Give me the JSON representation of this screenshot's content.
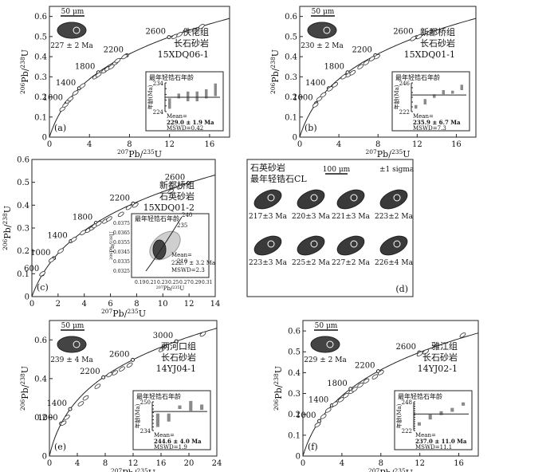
{
  "chart_data": [
    {
      "type": "scatter",
      "panel_label": "(a)",
      "xlabel": "207Pb/235U",
      "ylabel": "206Pb/238U",
      "xlim": [
        0,
        18
      ],
      "ylim": [
        0,
        0.65
      ],
      "xticks": [
        0,
        4,
        8,
        12,
        16
      ],
      "yticks": [
        0,
        0.1,
        0.2,
        0.3,
        0.4,
        0.5,
        0.6
      ],
      "sample_text": [
        "佚佬组",
        "长石砂岩",
        "15XDQ06-1"
      ],
      "concordia_ages": [
        "1000",
        "1400",
        "1800",
        "2200",
        "2600"
      ],
      "zircon_age": "227 ± 2 Ma",
      "scale_bar": "50 μm",
      "points": [
        [
          1.3,
          0.14
        ],
        [
          1.6,
          0.16
        ],
        [
          1.9,
          0.18
        ],
        [
          2.1,
          0.19
        ],
        [
          2.6,
          0.22
        ],
        [
          3.3,
          0.255
        ],
        [
          4.6,
          0.3
        ],
        [
          4.9,
          0.31
        ],
        [
          5.5,
          0.33
        ],
        [
          5.8,
          0.34
        ],
        [
          6.2,
          0.35
        ],
        [
          6.6,
          0.37
        ],
        [
          6.8,
          0.38
        ],
        [
          7.5,
          0.4
        ],
        [
          12.5,
          0.5
        ],
        [
          13.0,
          0.51
        ],
        [
          15.2,
          0.55
        ]
      ],
      "inset": {
        "title": "最年轻锆石年龄",
        "ylabel": "年龄(Ma)",
        "ylim": [
          224,
          234
        ],
        "yticks": [
          224,
          226,
          228,
          230,
          232,
          234
        ],
        "mean_line": 229.0,
        "bars": [
          [
            225.0,
            228.6
          ],
          [
            228.6,
            230.3
          ],
          [
            227.6,
            231.0
          ],
          [
            227.6,
            231.0
          ],
          [
            228.6,
            231.8
          ],
          [
            229.4,
            233.8
          ]
        ],
        "mean_text": "Mean=",
        "mean_value": "229.0 ± 1.9 Ma",
        "mswd": "MSWD=0.42"
      }
    },
    {
      "type": "scatter",
      "panel_label": "(b)",
      "xlabel": "207Pb/235U",
      "ylabel": "206Pb/238U",
      "xlim": [
        0,
        18
      ],
      "ylim": [
        0,
        0.65
      ],
      "xticks": [
        0,
        4,
        8,
        12,
        16
      ],
      "yticks": [
        0,
        0.1,
        0.2,
        0.3,
        0.4,
        0.5,
        0.6
      ],
      "sample_text": [
        "新都桥组",
        "长石砂岩",
        "15XDQ01-1"
      ],
      "concordia_ages": [
        "1000",
        "1400",
        "1800",
        "2200",
        "2600"
      ],
      "zircon_age": "230 ± 2 Ma",
      "scale_bar": "50 μm",
      "points": [
        [
          1.6,
          0.16
        ],
        [
          2.0,
          0.19
        ],
        [
          2.4,
          0.21
        ],
        [
          3.1,
          0.24
        ],
        [
          3.6,
          0.26
        ],
        [
          4.5,
          0.3
        ],
        [
          5.0,
          0.31
        ],
        [
          5.4,
          0.32
        ],
        [
          6.2,
          0.35
        ],
        [
          6.8,
          0.37
        ],
        [
          7.4,
          0.39
        ],
        [
          7.9,
          0.4
        ],
        [
          11.6,
          0.49
        ],
        [
          12.2,
          0.5
        ],
        [
          13.3,
          0.52
        ]
      ],
      "inset": {
        "title": "最年轻锆石年龄",
        "ylabel": "年龄(Ma)",
        "ylim": [
          222,
          246
        ],
        "yticks": [
          222,
          226,
          230,
          234,
          238,
          242,
          246
        ],
        "mean_line": 235.9,
        "bars": [
          [
            224.5,
            227.5
          ],
          [
            228.0,
            232.5
          ],
          [
            233.5,
            236.5
          ],
          [
            236.5,
            240.0
          ],
          [
            237.0,
            239.5
          ],
          [
            240.0,
            244.5
          ]
        ],
        "mean_text": "Mean=",
        "mean_value": "235.9 ± 6.7 Ma",
        "mswd": "MSWD=7.3"
      }
    },
    {
      "type": "scatter",
      "panel_label": "(c)",
      "xlabel": "207Pb/235U",
      "ylabel": "206Pb/238U",
      "xlim": [
        0,
        14
      ],
      "ylim": [
        0,
        0.6
      ],
      "xticks": [
        0,
        2,
        4,
        6,
        8,
        10,
        12,
        14
      ],
      "yticks": [
        0,
        0.1,
        0.2,
        0.3,
        0.4,
        0.5,
        0.6
      ],
      "sample_text": [
        "新都桥组",
        "石英砂岩",
        "15XDQ01-2"
      ],
      "concordia_ages": [
        "600",
        "1000",
        "1400",
        "1800",
        "2200",
        "2600"
      ],
      "points": [
        [
          0.8,
          0.1
        ],
        [
          1.5,
          0.16
        ],
        [
          2.2,
          0.2
        ],
        [
          3.2,
          0.25
        ],
        [
          3.9,
          0.28
        ],
        [
          4.3,
          0.29
        ],
        [
          4.6,
          0.3
        ],
        [
          4.8,
          0.31
        ],
        [
          5.1,
          0.32
        ],
        [
          5.6,
          0.33
        ],
        [
          5.9,
          0.34
        ],
        [
          6.8,
          0.36
        ],
        [
          7.4,
          0.39
        ],
        [
          7.9,
          0.4
        ],
        [
          10.6,
          0.46
        ],
        [
          11.3,
          0.48
        ]
      ],
      "inset": {
        "title": "最年轻锆石年龄",
        "xlabel": "207Pb/235U",
        "ylabel": "206Pb/238U",
        "xticks": [
          "0.19",
          "0.21",
          "0.23",
          "0.25",
          "0.27",
          "0.29",
          "0.31"
        ],
        "yticks": [
          "0.0325",
          "0.0335",
          "0.0345",
          "0.0355",
          "0.0365",
          "0.0375"
        ],
        "concordia_ages": [
          "210",
          "235",
          "240"
        ],
        "mean_text": "Mean=",
        "mean_value": "222.7 ± 3.2 Ma",
        "mswd": "MSWD=2.3"
      }
    },
    {
      "type": "other",
      "panel_label": "(d)",
      "title_lines": [
        "石英砂岩",
        "最年轻锆石CL"
      ],
      "scale_bar": "100 μm",
      "sigma": "±1 sigma",
      "zircon_ages": [
        "217±3 Ma",
        "220±3 Ma",
        "221±3 Ma",
        "223±2 Ma",
        "223±3 Ma",
        "225±2 Ma",
        "227±2 Ma",
        "226±4 Ma"
      ]
    },
    {
      "type": "scatter",
      "panel_label": "(e)",
      "xlabel": "207Pb/235U",
      "ylabel": "206Pb/238U",
      "xlim": [
        0,
        24
      ],
      "ylim": [
        0,
        0.7
      ],
      "xticks": [
        0,
        4,
        8,
        12,
        16,
        20,
        24
      ],
      "yticks": [
        0,
        0.2,
        0.4,
        0.6
      ],
      "sample_text": [
        "两河口组",
        "长石砂岩",
        "14YJ04-1"
      ],
      "concordia_ages": [
        "1000",
        "1400",
        "2200",
        "2600",
        "3000"
      ],
      "zircon_age": "239 ± 4 Ma",
      "scale_bar": "50 μm",
      "points": [
        [
          2.0,
          0.17
        ],
        [
          2.5,
          0.2
        ],
        [
          4.5,
          0.27
        ],
        [
          5.2,
          0.3
        ],
        [
          6.9,
          0.36
        ],
        [
          8.6,
          0.42
        ],
        [
          9.4,
          0.43
        ],
        [
          10.4,
          0.45
        ],
        [
          11.5,
          0.47
        ],
        [
          16.1,
          0.55
        ],
        [
          22.0,
          0.63
        ]
      ],
      "inset": {
        "title": "最年轻锆石年龄",
        "ylabel": "年龄(Ma)",
        "ylim": [
          234,
          250
        ],
        "yticks": [
          234,
          236,
          238,
          240,
          242,
          244,
          246,
          248,
          250
        ],
        "mean_line": 244.6,
        "bars": [
          [
            236.0,
            243.5
          ],
          [
            239.0,
            243.5
          ],
          [
            246.0,
            248.0
          ],
          [
            245.0,
            250.5
          ],
          [
            245.5,
            248.5
          ]
        ],
        "mean_text": "Mean=",
        "mean_value": "244.6 ± 4.0 Ma",
        "mswd": "MSWD=1.9"
      }
    },
    {
      "type": "scatter",
      "panel_label": "(f)",
      "xlabel": "207Pb/235U",
      "ylabel": "206Pb/238U",
      "xlim": [
        0,
        18
      ],
      "ylim": [
        0,
        0.65
      ],
      "xticks": [
        0,
        4,
        8,
        12,
        16
      ],
      "yticks": [
        0,
        0.1,
        0.2,
        0.3,
        0.4,
        0.5,
        0.6
      ],
      "sample_text": [
        "雅江组",
        "长石砂岩",
        "14YJ02-1"
      ],
      "concordia_ages": [
        "1000",
        "1400",
        "1800",
        "2200",
        "2600"
      ],
      "zircon_age": "229 ± 2 Ma",
      "scale_bar": "50 μm",
      "points": [
        [
          1.5,
          0.15
        ],
        [
          2.1,
          0.19
        ],
        [
          2.6,
          0.22
        ],
        [
          3.3,
          0.25
        ],
        [
          3.9,
          0.27
        ],
        [
          4.4,
          0.29
        ],
        [
          5.0,
          0.31
        ],
        [
          5.3,
          0.32
        ],
        [
          5.9,
          0.34
        ],
        [
          6.5,
          0.36
        ],
        [
          7.4,
          0.38
        ],
        [
          8.0,
          0.4
        ],
        [
          12.0,
          0.49
        ],
        [
          12.6,
          0.5
        ],
        [
          16.4,
          0.58
        ]
      ],
      "inset": {
        "title": "最年轻锆石年龄",
        "ylabel": "年龄(Ma)",
        "ylim": [
          222,
          248
        ],
        "yticks": [
          222,
          224,
          226,
          228,
          230,
          232,
          234,
          236,
          238,
          240,
          242,
          244,
          246,
          248
        ],
        "mean_line": 237.0,
        "bars": [
          [
            226.5,
            229.5
          ],
          [
            232.0,
            236.5
          ],
          [
            236.0,
            239.5
          ],
          [
            239.0,
            242.5
          ],
          [
            244.5,
            247.5
          ]
        ],
        "mean_text": "Mean=",
        "mean_value": "237.0 ± 11.0 Ma",
        "mswd": "MSWD=11.1"
      }
    }
  ]
}
